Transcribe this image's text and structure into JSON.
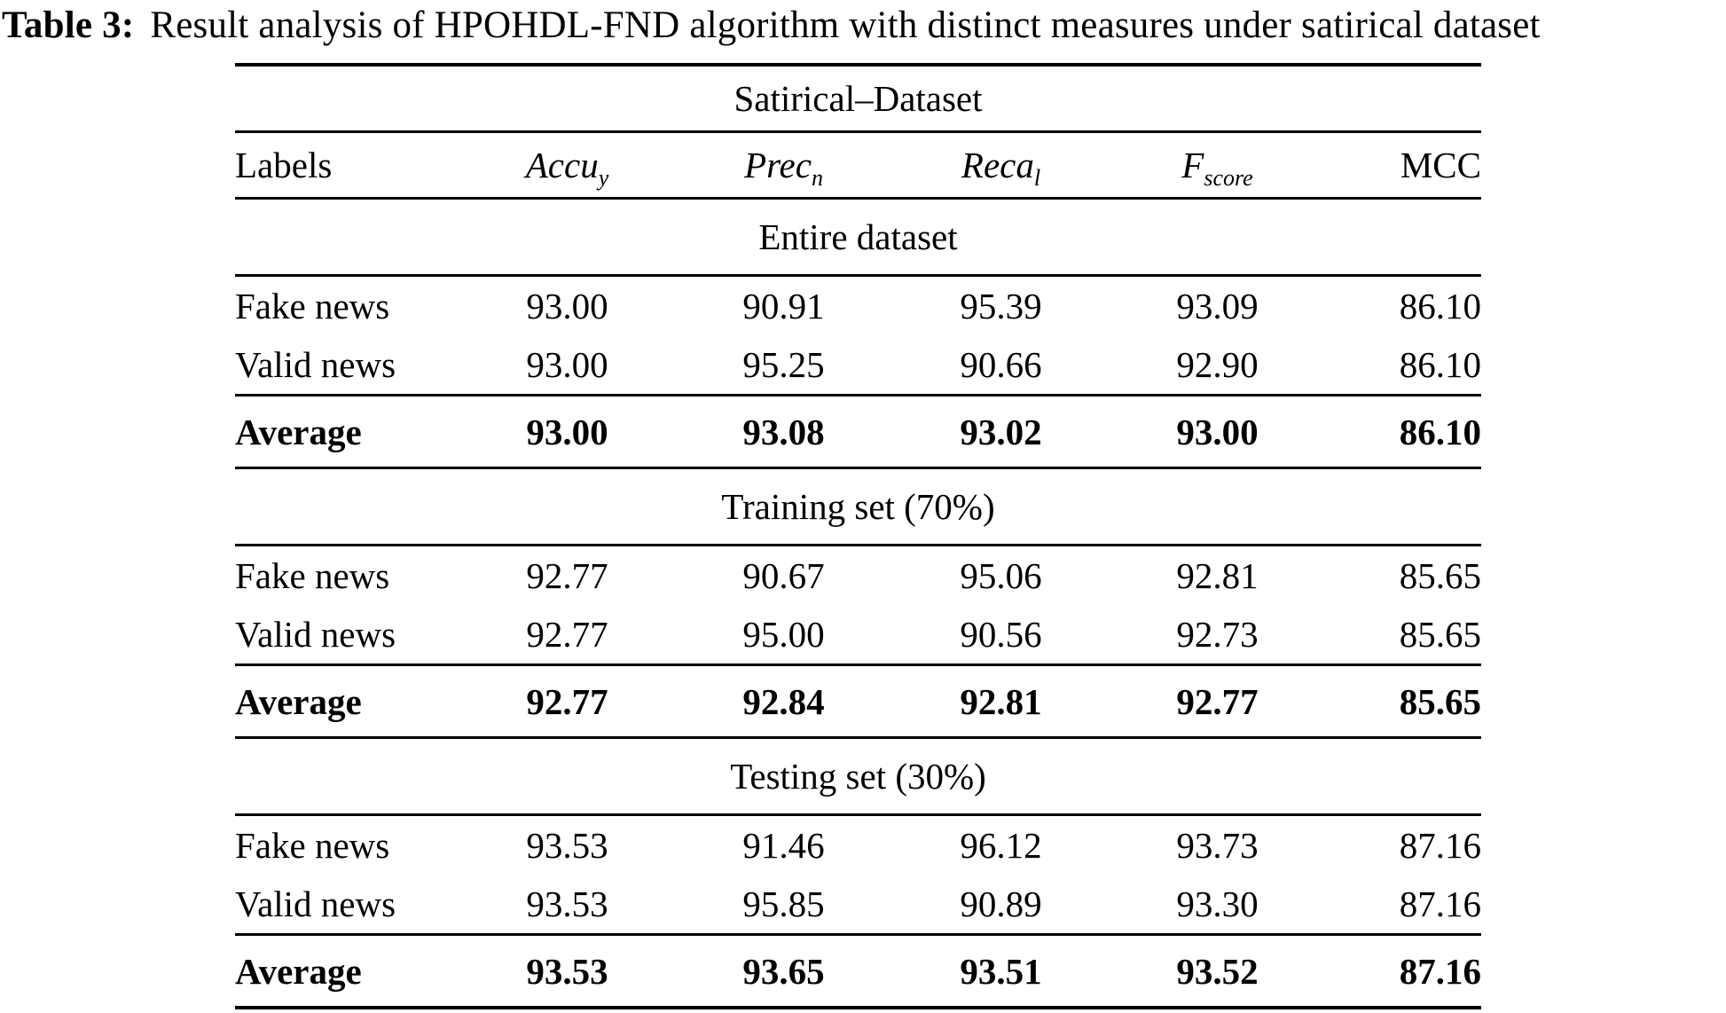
{
  "caption": {
    "label": "Table 3:",
    "text": "Result analysis of HPOHDL-FND algorithm with distinct measures under satirical dataset"
  },
  "colors": {
    "text": "#000000",
    "background": "#ffffff",
    "rule": "#000000"
  },
  "table": {
    "span_header": "Satirical–Dataset",
    "columns": {
      "labels": "Labels",
      "metrics": [
        {
          "base": "Accu",
          "sub": "y"
        },
        {
          "base": "Prec",
          "sub": "n"
        },
        {
          "base": "Reca",
          "sub": "l"
        },
        {
          "base": "F",
          "sub": "score"
        },
        {
          "base": "MCC",
          "sub": ""
        }
      ]
    },
    "sections": [
      {
        "heading": "Entire dataset",
        "rows": [
          {
            "label": "Fake news",
            "values": [
              "93.00",
              "90.91",
              "95.39",
              "93.09",
              "86.10"
            ]
          },
          {
            "label": "Valid news",
            "values": [
              "93.00",
              "95.25",
              "90.66",
              "92.90",
              "86.10"
            ]
          }
        ],
        "average": {
          "label": "Average",
          "values": [
            "93.00",
            "93.08",
            "93.02",
            "93.00",
            "86.10"
          ]
        }
      },
      {
        "heading": "Training set (70%)",
        "rows": [
          {
            "label": "Fake news",
            "values": [
              "92.77",
              "90.67",
              "95.06",
              "92.81",
              "85.65"
            ]
          },
          {
            "label": "Valid news",
            "values": [
              "92.77",
              "95.00",
              "90.56",
              "92.73",
              "85.65"
            ]
          }
        ],
        "average": {
          "label": "Average",
          "values": [
            "92.77",
            "92.84",
            "92.81",
            "92.77",
            "85.65"
          ]
        }
      },
      {
        "heading": "Testing set (30%)",
        "rows": [
          {
            "label": "Fake news",
            "values": [
              "93.53",
              "91.46",
              "96.12",
              "93.73",
              "87.16"
            ]
          },
          {
            "label": "Valid news",
            "values": [
              "93.53",
              "95.85",
              "90.89",
              "93.30",
              "87.16"
            ]
          }
        ],
        "average": {
          "label": "Average",
          "values": [
            "93.53",
            "93.65",
            "93.51",
            "93.52",
            "87.16"
          ]
        }
      }
    ]
  }
}
